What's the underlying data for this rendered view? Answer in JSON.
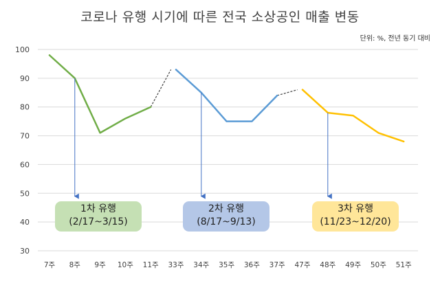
{
  "chart_data": {
    "type": "line",
    "title": "코로나 유행 시기에 따른 전국 소상공인 매출 변동",
    "subtitle": "단위: %, 전년 동기 대비",
    "categories": [
      "7주",
      "8주",
      "9주",
      "10주",
      "11주",
      "33주",
      "34주",
      "35주",
      "36주",
      "37주",
      "47주",
      "48주",
      "49주",
      "50주",
      "51주"
    ],
    "ylim": [
      30,
      100
    ],
    "yticks": [
      30,
      40,
      50,
      60,
      70,
      80,
      90,
      100
    ],
    "grid": true,
    "series": [
      {
        "color": "#70ad47",
        "points": [
          [
            0,
            98
          ],
          [
            1,
            90
          ],
          [
            2,
            71
          ],
          [
            3,
            76
          ],
          [
            4,
            80
          ]
        ]
      },
      {
        "color": "#5b9bd5",
        "points": [
          [
            5,
            93
          ],
          [
            6,
            85
          ],
          [
            7,
            75
          ],
          [
            8,
            75
          ],
          [
            9,
            84
          ]
        ]
      },
      {
        "color": "#ffc000",
        "points": [
          [
            10,
            86
          ],
          [
            11,
            78
          ],
          [
            12,
            77
          ],
          [
            13,
            71
          ],
          [
            14,
            68
          ]
        ]
      }
    ],
    "connectors": [
      {
        "color": "#404040",
        "points": [
          [
            4,
            80
          ],
          [
            4.8,
            93
          ]
        ]
      },
      {
        "color": "#404040",
        "points": [
          [
            9,
            84
          ],
          [
            9.8,
            86
          ]
        ]
      }
    ],
    "annotations": [
      {
        "line1": "1차 유행",
        "line2": "(2/17~3/15)",
        "fill": "#c5e0b4",
        "arrow_x": 1,
        "arrow_from": 90,
        "arrow_to": 48
      },
      {
        "line1": "2차 유행",
        "line2": "(8/17~9/13)",
        "fill": "#b4c7e7",
        "arrow_x": 6,
        "arrow_from": 85,
        "arrow_to": 48
      },
      {
        "line1": "3차 유행",
        "line2": "(11/23~12/20)",
        "fill": "#ffe699",
        "arrow_x": 11,
        "arrow_from": 78,
        "arrow_to": 48
      }
    ]
  }
}
